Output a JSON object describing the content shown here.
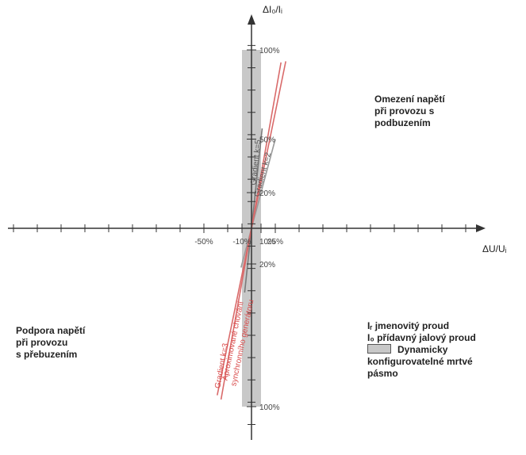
{
  "chart_data": {
    "type": "line",
    "xlabel": "ΔU/Uᵢ",
    "ylabel": "ΔI₀/Iᵢ",
    "x_ticks": [
      {
        "value": -50,
        "label": "-50%"
      },
      {
        "value": -10,
        "label": "-10%"
      },
      {
        "value": 10,
        "label": "10%"
      },
      {
        "value": 25,
        "label": "25%"
      }
    ],
    "y_ticks": [
      {
        "value": 100,
        "label": "100%"
      },
      {
        "value": 50,
        "label": "50%"
      },
      {
        "value": 20,
        "label": "20%"
      },
      {
        "value": -20,
        "label": "20%"
      },
      {
        "value": -100,
        "label": "100%"
      }
    ],
    "dead_band": {
      "x_min": -10,
      "x_max": 10,
      "y_min": -100,
      "y_max": 100,
      "color": "#c8c8c8"
    },
    "series": [
      {
        "name": "Gradient k=5",
        "slope": 5,
        "color": "#7a7a7a"
      },
      {
        "name": "Gradient k=2",
        "slope": 2,
        "color": "#9a9a9a"
      },
      {
        "name": "Gradient k=3",
        "slope": 3,
        "color": "#d96a6a"
      },
      {
        "name": "Aproximované chování synchronního generátoru",
        "slope": 2.6,
        "color": "#d96a6a"
      }
    ]
  },
  "annotations": {
    "upper_right": [
      "Omezení napětí",
      "při provozu s",
      "podbuzením"
    ],
    "lower_left": [
      "Podpora napětí",
      "při provozu",
      "s přebuzením"
    ]
  },
  "legend": {
    "rated_current": "Iᵣ jmenovitý proud",
    "reactive_current": "I₀ přídavný jalový proud",
    "dead_band_line1": "Dynamicky",
    "dead_band_line2": "konfigurovatelné mrtvé",
    "dead_band_line3": "pásmo",
    "swatch_color": "#c8c8c8"
  }
}
